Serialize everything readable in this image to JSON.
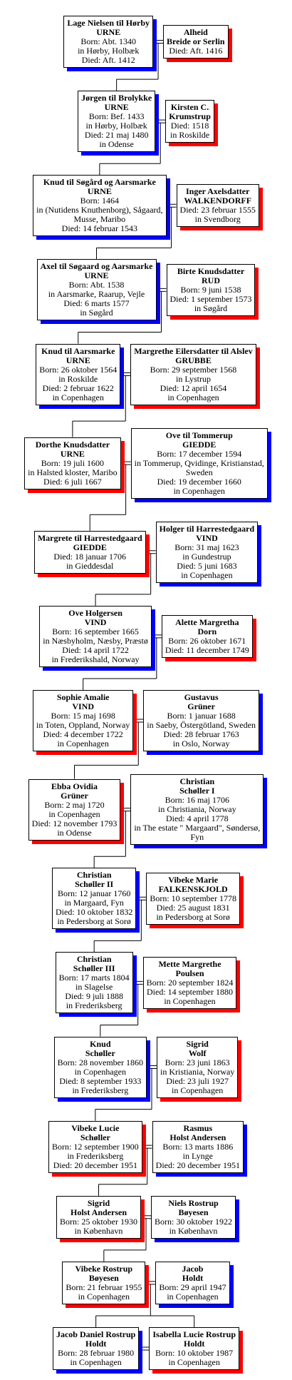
{
  "rows": [
    {
      "left": {
        "shadow": "#0000ff",
        "name": [
          "Lage Nielsen til Hørby",
          "URNE"
        ],
        "details": [
          "Born: Abt. 1340",
          "in Hørby, Holbæk",
          "Died: Aft. 1412"
        ]
      },
      "right": {
        "shadow": "#ff0000",
        "name": [
          "Alheid",
          "Breide or Serlin"
        ],
        "details": [
          "Died: Aft. 1416"
        ]
      }
    },
    {
      "left": {
        "shadow": "#0000ff",
        "name": [
          "Jørgen til Brolykke",
          "URNE"
        ],
        "details": [
          "Born: Bef. 1433",
          "in Hørby, Holbæk",
          "Died: 21 maj 1480",
          "in Odense"
        ]
      },
      "right": {
        "shadow": "#ff0000",
        "name": [
          "Kirsten C.",
          "Krumstrup"
        ],
        "details": [
          "Died: 1518",
          "in Roskilde"
        ]
      }
    },
    {
      "left": {
        "shadow": "#0000ff",
        "name": [
          "Knud til Søgård og Aarsmarke",
          "URNE"
        ],
        "details": [
          "Born: 1464",
          "in (Nutidens Knuthenborg), Sågaard,",
          "Musse, Maribo",
          "Died: 14 februar 1543"
        ]
      },
      "right": {
        "shadow": "#ff0000",
        "name": [
          "Inger Axelsdatter",
          "WALKENDORFF"
        ],
        "details": [
          "Died: 23 februar 1555",
          "in Svendborg"
        ]
      }
    },
    {
      "left": {
        "shadow": "#0000ff",
        "name": [
          "Axel til Søgaard og Aarsmarke",
          "URNE"
        ],
        "details": [
          "Born: Abt. 1538",
          "in Aarsmarke, Raarup, Vejle",
          "Died: 6 marts 1577",
          "in Søgård"
        ]
      },
      "right": {
        "shadow": "#ff0000",
        "name": [
          "Birte Knudsdatter",
          "RUD"
        ],
        "details": [
          "Born: 9 juni 1538",
          "Died: 1 september 1573",
          "in Søgård"
        ]
      }
    },
    {
      "left": {
        "shadow": "#0000ff",
        "name": [
          "Knud til Aarsmarke",
          "URNE"
        ],
        "details": [
          "Born: 26 oktober 1564",
          "in Roskilde",
          "Died: 2 februar 1622",
          "in Copenhagen"
        ]
      },
      "right": {
        "shadow": "#ff0000",
        "name": [
          "Margrethe Eilersdatter til Alslev",
          "GRUBBE"
        ],
        "details": [
          "Born: 29 september 1568",
          "in Lystrup",
          "Died: 12 april 1654",
          "in Copenhagen"
        ]
      }
    },
    {
      "left": {
        "shadow": "#ff0000",
        "name": [
          "Dorthe Knudsdatter",
          "URNE"
        ],
        "details": [
          "Born: 19 juli 1600",
          "in Halsted kloster, Maribo",
          "Died: 6 juli 1667"
        ]
      },
      "right": {
        "shadow": "#0000ff",
        "name": [
          "Ove til Tommerup",
          "GIEDDE"
        ],
        "details": [
          "Born: 17 december 1594",
          "in Tommerup, Qvidinge, Kristianstad,",
          "Sweden",
          "Died: 19 december 1660",
          "in Copenhagen"
        ]
      }
    },
    {
      "left": {
        "shadow": "#ff0000",
        "name": [
          "Margrete til Harrestedgaard",
          "GIEDDE"
        ],
        "details": [
          "Died: 18 januar 1706",
          "in Gieddesdal"
        ]
      },
      "right": {
        "shadow": "#0000ff",
        "name": [
          "Holger til Harrestedgaard",
          "VIND"
        ],
        "details": [
          "Born: 31 maj 1623",
          "in Gundestrup",
          "Died: 5 juni 1683",
          "in Copenhagen"
        ]
      }
    },
    {
      "left": {
        "shadow": "#0000ff",
        "name": [
          "Ove Holgersen",
          "VIND"
        ],
        "details": [
          "Born: 16 september 1665",
          "in Næsbyholm, Næsby, Præstø",
          "Died: 14 april 1722",
          "in Frederikshald, Norway"
        ]
      },
      "right": {
        "shadow": "#ff0000",
        "name": [
          "Alette Margretha",
          "Dorn"
        ],
        "details": [
          "Born: 26 oktober 1671",
          "Died: 11 december 1749"
        ]
      }
    },
    {
      "left": {
        "shadow": "#ff0000",
        "name": [
          "Sophie Amalie",
          "VIND"
        ],
        "details": [
          "Born: 15 maj 1698",
          "in Toten, Oppland, Norway",
          "Died: 4 december 1722",
          "in Copenhagen"
        ]
      },
      "right": {
        "shadow": "#0000ff",
        "name": [
          "Gustavus",
          "Grüner"
        ],
        "details": [
          "Born: 1 januar 1688",
          "in Saeby, Östergötland, Sweden",
          "Died: 28 februar 1763",
          "in Oslo, Norway"
        ]
      }
    },
    {
      "left": {
        "shadow": "#ff0000",
        "name": [
          "Ebba Ovidia",
          "Grüner"
        ],
        "details": [
          "Born: 2 maj 1720",
          "in Copenhagen",
          "Died: 12 november 1793",
          "in Odense"
        ]
      },
      "right": {
        "shadow": "#0000ff",
        "name": [
          "Christian",
          "Schøller I"
        ],
        "details": [
          "Born: 16 maj 1706",
          "in Christiania, Norway",
          "Died: 4 april 1778",
          "in The estate \" Margaard\", Søndersø,",
          "Fyn"
        ]
      }
    },
    {
      "left": {
        "shadow": "#0000ff",
        "name": [
          "Christian",
          "Schøller II"
        ],
        "details": [
          "Born: 12 januar 1760",
          "in Margaard, Fyn",
          "Died: 10 oktober 1832",
          "in Pedersborg at Sorø"
        ]
      },
      "right": {
        "shadow": "#ff0000",
        "name": [
          "Vibeke Marie",
          "FALKENSKJOLD"
        ],
        "details": [
          "Born: 10 september 1778",
          "Died: 25 august 1831",
          "in Pedersborg at Sorø"
        ]
      }
    },
    {
      "left": {
        "shadow": "#0000ff",
        "name": [
          "Christian",
          "Schøller III"
        ],
        "details": [
          "Born: 17 marts 1804",
          "in Slagelse",
          "Died: 9 juli 1888",
          "in Frederiksberg"
        ]
      },
      "right": {
        "shadow": "#ff0000",
        "name": [
          "Mette Margrethe",
          "Poulsen"
        ],
        "details": [
          "Born: 20 september 1824",
          "Died: 14 september 1880",
          "in Copenhagen"
        ]
      }
    },
    {
      "left": {
        "shadow": "#0000ff",
        "name": [
          "Knud",
          "Schøller"
        ],
        "details": [
          "Born: 28 november 1860",
          "in Copenhagen",
          "Died: 8 september 1933",
          "in Frederiksberg"
        ]
      },
      "right": {
        "shadow": "#ff0000",
        "name": [
          "Sigrid",
          "Wolf"
        ],
        "details": [
          "Born: 23 juni 1863",
          "in Kristiania, Norway",
          "Died: 23 juli 1927",
          "in Copenhagen"
        ]
      }
    },
    {
      "left": {
        "shadow": "#ff0000",
        "name": [
          "Vibeke Lucie",
          "Schøller"
        ],
        "details": [
          "Born: 12 september 1900",
          "in Frederiksberg",
          "Died: 20 december 1951"
        ]
      },
      "right": {
        "shadow": "#0000ff",
        "name": [
          "Rasmus",
          "Holst Andersen"
        ],
        "details": [
          "Born: 13 marts 1886",
          "in Lynge",
          "Died: 20 december 1951"
        ]
      }
    },
    {
      "left": {
        "shadow": "#ff0000",
        "name": [
          "Sigrid",
          "Holst Andersen"
        ],
        "details": [
          "Born: 25 oktober 1930",
          "in København"
        ]
      },
      "right": {
        "shadow": "#0000ff",
        "name": [
          "Niels Rostrup",
          "Bøyesen"
        ],
        "details": [
          "Born: 30 oktober 1922",
          "in København"
        ]
      }
    },
    {
      "left": {
        "shadow": "#ff0000",
        "name": [
          "Vibeke Rostrup",
          "Bøyesen"
        ],
        "details": [
          "Born: 21 februar 1955",
          "in Copenhagen"
        ]
      },
      "right": {
        "shadow": "#0000ff",
        "name": [
          "Jacob",
          "Holdt"
        ],
        "details": [
          "Born: 29 april 1947",
          "in Copenhagen"
        ]
      }
    },
    {
      "left": {
        "shadow": "#0000ff",
        "name": [
          "Jacob Daniel Rostrup",
          "Holdt"
        ],
        "details": [
          "Born: 28 februar 1980",
          "in Copenhagen"
        ]
      },
      "right": {
        "shadow": "#ff0000",
        "name": [
          "Isabella Lucie Rostrup",
          "Holdt"
        ],
        "details": [
          "Born: 10 oktober 1987",
          "in Copenhagen"
        ]
      }
    }
  ]
}
